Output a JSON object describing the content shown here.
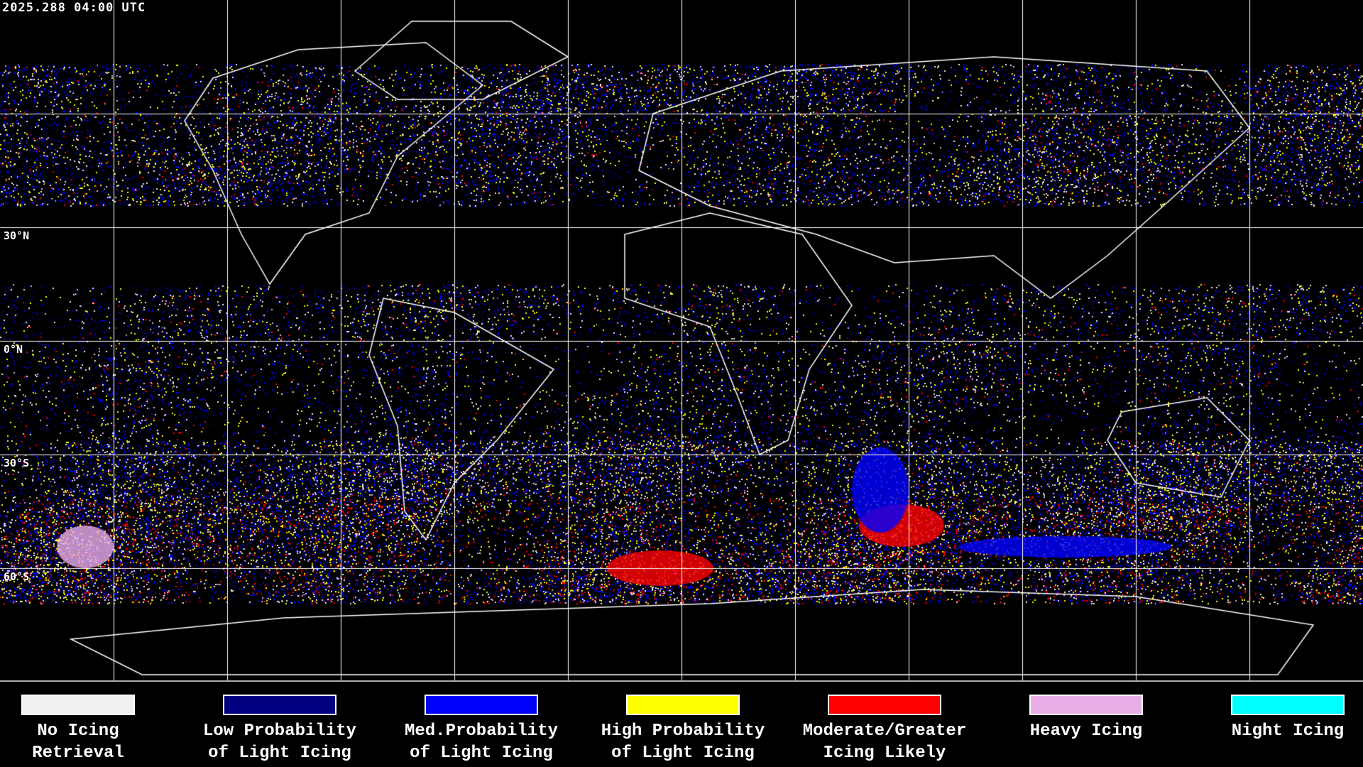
{
  "timestamp": "2025.288 04:00 UTC",
  "latitude_labels": [
    "30°N",
    "0°N",
    "30°S",
    "60°S"
  ],
  "legend": [
    {
      "label": "No Icing\nRetrieval",
      "color": "#f0f0f0"
    },
    {
      "label": "Low Probability\nof Light Icing",
      "color": "#000080"
    },
    {
      "label": "Med.Probability\nof Light Icing",
      "color": "#0000ff"
    },
    {
      "label": "High Probability\nof Light Icing",
      "color": "#ffff00"
    },
    {
      "label": "Moderate/Greater\nIcing Likely",
      "color": "#ff0000"
    },
    {
      "label": "Heavy Icing",
      "color": "#e8aee8"
    },
    {
      "label": "Night Icing",
      "color": "#00ffff"
    }
  ]
}
